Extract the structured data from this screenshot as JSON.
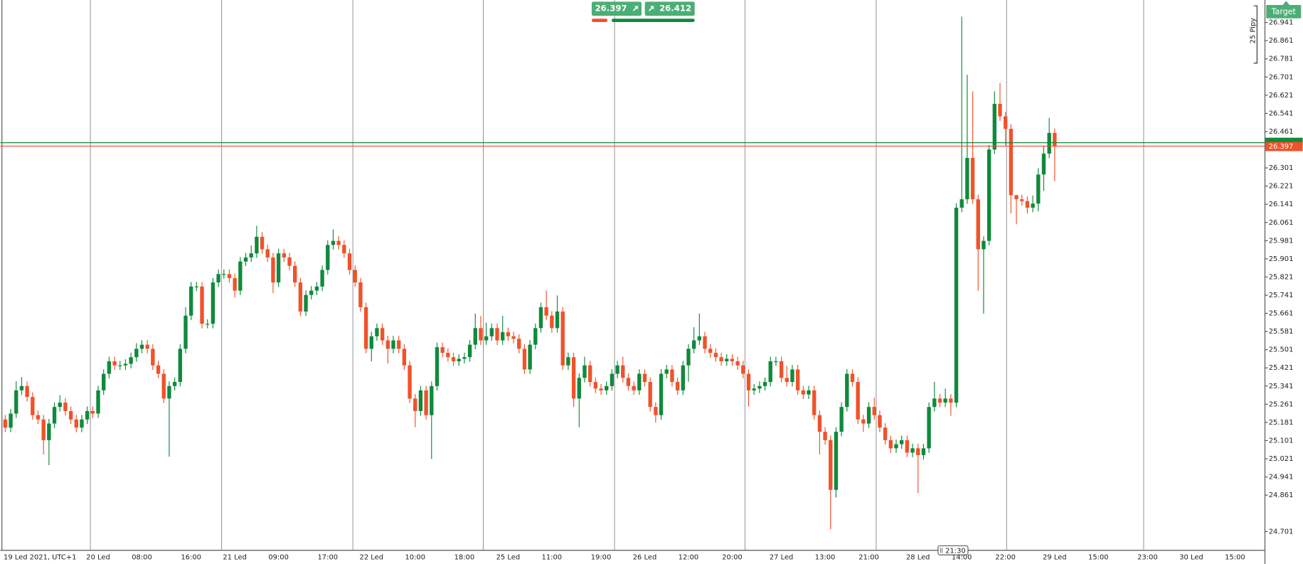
{
  "chart_data": {
    "type": "candlestick",
    "up_color": "#0f8a3c",
    "down_color": "#f0522a",
    "bid": 26.397,
    "ask": 26.412,
    "target_label": "Target",
    "pip_label": "25 Pipy",
    "crosshair_time": "21:30",
    "ylim": [
      24.62,
      27.04
    ],
    "yticks": [
      24.701,
      24.861,
      24.941,
      25.021,
      25.101,
      25.181,
      25.261,
      25.341,
      25.421,
      25.501,
      25.581,
      25.661,
      25.741,
      25.821,
      25.901,
      25.981,
      26.061,
      26.141,
      26.221,
      26.301,
      26.461,
      26.541,
      26.621,
      26.701,
      26.781,
      26.861,
      26.941
    ],
    "categories": [
      "19 Led 2021, UTC+1",
      null,
      null,
      null,
      null,
      null,
      null,
      null,
      null,
      null,
      null,
      null,
      null,
      null,
      null,
      null,
      null,
      "20 Led",
      null,
      null,
      null,
      null,
      null,
      null,
      null,
      "08:00",
      null,
      null,
      null,
      null,
      null,
      null,
      null,
      null,
      "16:00",
      null,
      null,
      null,
      null,
      null,
      null,
      null,
      "21 Led",
      null,
      null,
      null,
      null,
      null,
      null,
      null,
      "09:00",
      null,
      null,
      null,
      null,
      null,
      null,
      null,
      null,
      "17:00",
      null,
      null,
      null,
      null,
      null,
      null,
      null,
      "22 Led",
      null,
      null,
      null,
      null,
      null,
      null,
      null,
      "10:00",
      null,
      null,
      null,
      null,
      null,
      null,
      null,
      null,
      "18:00",
      null,
      null,
      null,
      null,
      null,
      null,
      null,
      "25 Led",
      null,
      null,
      null,
      null,
      null,
      null,
      null,
      "11:00",
      null,
      null,
      null,
      null,
      null,
      null,
      null,
      null,
      "19:00",
      null,
      null,
      null,
      null,
      null,
      null,
      null,
      "26 Led",
      null,
      null,
      null,
      null,
      null,
      null,
      null,
      "12:00",
      null,
      null,
      null,
      null,
      null,
      null,
      null,
      "20:00",
      null,
      null,
      null,
      null,
      null,
      null,
      null,
      null,
      "27 Led",
      null,
      null,
      null,
      null,
      null,
      null,
      null,
      "13:00",
      null,
      null,
      null,
      null,
      null,
      null,
      null,
      "21:00",
      null,
      null,
      null,
      null,
      null,
      null,
      null,
      null,
      "28 Led",
      null,
      null,
      null,
      null,
      null,
      null,
      null,
      "14:00",
      null,
      null,
      null,
      null,
      null,
      null,
      null,
      "22:00",
      null,
      null,
      null,
      null,
      null,
      null,
      null,
      null,
      "29 Led",
      null,
      null,
      null,
      null,
      null,
      null,
      null,
      "15:00",
      null,
      null,
      null,
      null,
      null,
      null,
      null,
      null,
      "23:00",
      null,
      null,
      null,
      null,
      null,
      null,
      null,
      "30 Led",
      null,
      null,
      null,
      null,
      null,
      null,
      null,
      "15:00"
    ],
    "open": [
      25.194,
      25.158,
      25.22,
      25.322,
      25.341,
      25.293,
      25.213,
      25.194,
      25.103,
      25.176,
      25.249,
      25.268,
      25.231,
      25.194,
      25.158,
      25.194,
      25.231,
      25.22,
      25.322,
      25.395,
      25.45,
      25.432,
      25.432,
      25.439,
      25.468,
      25.505,
      25.523,
      25.505,
      25.432,
      25.395,
      25.286,
      25.341,
      25.359,
      25.505,
      25.651,
      25.779,
      25.779,
      25.615,
      25.615,
      25.797,
      25.834,
      25.834,
      25.816,
      25.761,
      25.889,
      25.907,
      25.925,
      25.998,
      25.943,
      25.907,
      25.797,
      25.925,
      25.907,
      25.87,
      25.797,
      25.669,
      25.742,
      25.761,
      25.779,
      25.852,
      25.962,
      25.98,
      25.962,
      25.925,
      25.852,
      25.797,
      25.688,
      25.505,
      25.56,
      25.596,
      25.542,
      25.505,
      25.542,
      25.505,
      25.432,
      25.286,
      25.231,
      25.322,
      25.213,
      25.341,
      25.512,
      25.487,
      25.468,
      25.45,
      25.461,
      25.468,
      25.523,
      25.596,
      25.542,
      25.56,
      25.596,
      25.542,
      25.578,
      25.56,
      25.549,
      25.505,
      25.414,
      25.523,
      25.596,
      25.688,
      25.651,
      25.596,
      25.669,
      25.432,
      25.468,
      25.286,
      25.377,
      25.432,
      25.359,
      25.33,
      25.322,
      25.341,
      25.395,
      25.432,
      25.377,
      25.341,
      25.322,
      25.395,
      25.359,
      25.249,
      25.213,
      25.395,
      25.414,
      25.359,
      25.322,
      25.432,
      25.505,
      25.542,
      25.56,
      25.505,
      25.487,
      25.468,
      25.45,
      25.461,
      25.45,
      25.432,
      25.395,
      25.322,
      25.33,
      25.341,
      25.359,
      25.45,
      25.45,
      25.377,
      25.359,
      25.414,
      25.322,
      25.304,
      25.322,
      25.213,
      25.14,
      25.103,
      24.884,
      25.14,
      25.249,
      25.395,
      25.359,
      25.194,
      25.176,
      25.249,
      25.213,
      25.158,
      25.103,
      25.067,
      25.085,
      25.103,
      25.048,
      25.067,
      25.037,
      25.067,
      25.249,
      25.286,
      25.268,
      25.286,
      25.268,
      26.126,
      26.163,
      26.345,
      26.163,
      25.943,
      25.98,
      26.382,
      26.583,
      26.528,
      26.473,
      26.181,
      26.163,
      26.155,
      26.126,
      26.144,
      26.272,
      26.364,
      26.455,
      null,
      null,
      null,
      null,
      null,
      null,
      null,
      null,
      null,
      null,
      null,
      null,
      null,
      null,
      null,
      null,
      null,
      null,
      null,
      null,
      null,
      null,
      null,
      null,
      null,
      null,
      null,
      null,
      null,
      null,
      null,
      null,
      null
    ],
    "high": [
      25.214,
      25.24,
      25.362,
      25.38,
      25.361,
      25.313,
      25.233,
      25.214,
      25.196,
      25.269,
      25.3,
      25.288,
      25.251,
      25.214,
      25.214,
      25.251,
      25.251,
      25.342,
      25.415,
      25.47,
      25.47,
      25.452,
      25.459,
      25.488,
      25.53,
      25.543,
      25.543,
      25.525,
      25.452,
      25.415,
      25.361,
      25.379,
      25.525,
      25.688,
      25.799,
      25.799,
      25.799,
      25.635,
      25.817,
      25.854,
      25.854,
      25.854,
      25.836,
      25.909,
      25.927,
      25.96,
      26.046,
      26.018,
      25.963,
      25.927,
      25.945,
      25.945,
      25.927,
      25.89,
      25.817,
      25.762,
      25.781,
      25.799,
      25.872,
      25.982,
      26.03,
      26.0,
      25.982,
      25.945,
      25.872,
      25.817,
      25.708,
      25.58,
      25.616,
      25.616,
      25.562,
      25.562,
      25.562,
      25.525,
      25.452,
      25.306,
      25.342,
      25.342,
      25.361,
      25.532,
      25.532,
      25.507,
      25.488,
      25.481,
      25.488,
      25.543,
      25.66,
      25.65,
      25.62,
      25.616,
      25.616,
      25.65,
      25.598,
      25.58,
      25.569,
      25.525,
      25.543,
      25.616,
      25.708,
      25.761,
      25.671,
      25.74,
      25.689,
      25.488,
      25.488,
      25.397,
      25.47,
      25.452,
      25.379,
      25.35,
      25.361,
      25.415,
      25.452,
      25.47,
      25.397,
      25.361,
      25.415,
      25.415,
      25.379,
      25.269,
      25.415,
      25.434,
      25.434,
      25.379,
      25.452,
      25.525,
      25.6,
      25.66,
      25.58,
      25.525,
      25.507,
      25.488,
      25.481,
      25.481,
      25.47,
      25.452,
      25.415,
      25.35,
      25.361,
      25.379,
      25.47,
      25.47,
      25.47,
      25.43,
      25.434,
      25.434,
      25.342,
      25.342,
      25.342,
      25.233,
      25.16,
      25.123,
      25.16,
      25.269,
      25.415,
      25.415,
      25.379,
      25.214,
      25.269,
      25.29,
      25.233,
      25.178,
      25.123,
      25.105,
      25.123,
      25.123,
      25.087,
      25.087,
      25.087,
      25.269,
      25.36,
      25.306,
      25.33,
      25.306,
      26.146,
      26.967,
      26.711,
      26.638,
      26.183,
      26.0,
      26.402,
      26.638,
      26.674,
      26.548,
      26.493,
      26.183,
      26.183,
      26.175,
      26.18,
      26.3,
      26.4,
      26.521,
      26.475,
      null,
      null,
      null,
      null,
      null,
      null,
      null,
      null,
      null,
      null,
      null,
      null,
      null,
      null,
      null,
      null,
      null,
      null,
      null,
      null,
      null,
      null,
      null,
      null,
      null,
      null,
      null,
      null,
      null,
      null,
      null,
      null,
      null
    ],
    "low": [
      25.138,
      25.138,
      25.2,
      25.302,
      25.273,
      25.193,
      25.174,
      25.04,
      24.993,
      25.156,
      25.229,
      25.211,
      25.174,
      25.138,
      25.138,
      25.174,
      25.2,
      25.2,
      25.302,
      25.375,
      25.412,
      25.412,
      25.412,
      25.419,
      25.448,
      25.485,
      25.485,
      25.412,
      25.375,
      25.266,
      25.03,
      25.321,
      25.339,
      25.485,
      25.631,
      25.759,
      25.595,
      25.595,
      25.595,
      25.777,
      25.814,
      25.796,
      25.73,
      25.741,
      25.869,
      25.887,
      25.905,
      25.923,
      25.887,
      25.75,
      25.777,
      25.887,
      25.85,
      25.777,
      25.649,
      25.649,
      25.722,
      25.741,
      25.759,
      25.832,
      25.942,
      25.942,
      25.905,
      25.832,
      25.777,
      25.668,
      25.485,
      25.45,
      25.54,
      25.522,
      25.44,
      25.485,
      25.485,
      25.412,
      25.266,
      25.16,
      25.211,
      25.193,
      25.02,
      25.321,
      25.467,
      25.448,
      25.43,
      25.43,
      25.441,
      25.448,
      25.503,
      25.522,
      25.522,
      25.54,
      25.522,
      25.522,
      25.54,
      25.529,
      25.485,
      25.394,
      25.394,
      25.503,
      25.576,
      25.631,
      25.576,
      25.576,
      25.412,
      25.412,
      25.25,
      25.16,
      25.357,
      25.339,
      25.31,
      25.302,
      25.302,
      25.321,
      25.375,
      25.357,
      25.321,
      25.302,
      25.302,
      25.339,
      25.229,
      25.18,
      25.193,
      25.375,
      25.339,
      25.302,
      25.302,
      25.36,
      25.485,
      25.522,
      25.485,
      25.467,
      25.448,
      25.43,
      25.43,
      25.43,
      25.412,
      25.375,
      25.25,
      25.302,
      25.31,
      25.321,
      25.339,
      25.43,
      25.357,
      25.339,
      25.339,
      25.302,
      25.284,
      25.284,
      25.193,
      25.04,
      25.083,
      24.711,
      24.85,
      25.12,
      25.229,
      25.339,
      25.174,
      25.14,
      25.156,
      25.193,
      25.138,
      25.083,
      25.047,
      25.047,
      25.065,
      25.028,
      25.028,
      24.87,
      25.017,
      25.047,
      25.229,
      25.248,
      25.248,
      25.21,
      25.248,
      26.106,
      26.143,
      26.143,
      25.761,
      25.659,
      25.96,
      26.362,
      26.508,
      26.4,
      26.1,
      26.053,
      26.135,
      26.1,
      26.106,
      26.11,
      26.2,
      26.344,
      26.243,
      null,
      null,
      null,
      null,
      null,
      null,
      null,
      null,
      null,
      null,
      null,
      null,
      null,
      null,
      null,
      null,
      null,
      null,
      null,
      null,
      null,
      null,
      null,
      null,
      null,
      null,
      null,
      null,
      null,
      null,
      null,
      null,
      null
    ],
    "close": [
      25.158,
      25.22,
      25.322,
      25.341,
      25.293,
      25.213,
      25.194,
      25.103,
      25.176,
      25.249,
      25.268,
      25.231,
      25.194,
      25.158,
      25.194,
      25.231,
      25.22,
      25.322,
      25.395,
      25.45,
      25.432,
      25.432,
      25.439,
      25.468,
      25.505,
      25.523,
      25.505,
      25.432,
      25.395,
      25.286,
      25.341,
      25.359,
      25.505,
      25.651,
      25.779,
      25.779,
      25.615,
      25.615,
      25.797,
      25.834,
      25.834,
      25.816,
      25.761,
      25.889,
      25.907,
      25.925,
      25.998,
      25.943,
      25.907,
      25.797,
      25.925,
      25.907,
      25.87,
      25.797,
      25.669,
      25.742,
      25.761,
      25.779,
      25.852,
      25.962,
      25.98,
      25.962,
      25.925,
      25.852,
      25.797,
      25.688,
      25.505,
      25.56,
      25.596,
      25.542,
      25.505,
      25.542,
      25.505,
      25.432,
      25.286,
      25.231,
      25.322,
      25.213,
      25.341,
      25.512,
      25.487,
      25.468,
      25.45,
      25.461,
      25.468,
      25.523,
      25.596,
      25.542,
      25.56,
      25.596,
      25.542,
      25.578,
      25.56,
      25.549,
      25.505,
      25.414,
      25.523,
      25.596,
      25.688,
      25.651,
      25.596,
      25.669,
      25.432,
      25.468,
      25.286,
      25.377,
      25.432,
      25.359,
      25.33,
      25.322,
      25.341,
      25.395,
      25.432,
      25.377,
      25.341,
      25.322,
      25.395,
      25.359,
      25.249,
      25.213,
      25.395,
      25.414,
      25.359,
      25.322,
      25.432,
      25.505,
      25.542,
      25.56,
      25.505,
      25.487,
      25.468,
      25.45,
      25.461,
      25.45,
      25.432,
      25.395,
      25.322,
      25.33,
      25.341,
      25.359,
      25.45,
      25.45,
      25.377,
      25.359,
      25.414,
      25.322,
      25.304,
      25.322,
      25.213,
      25.14,
      25.103,
      24.884,
      25.14,
      25.249,
      25.395,
      25.359,
      25.194,
      25.176,
      25.249,
      25.213,
      25.158,
      25.103,
      25.067,
      25.085,
      25.103,
      25.048,
      25.067,
      25.037,
      25.067,
      25.249,
      25.286,
      25.268,
      25.286,
      25.268,
      26.126,
      26.163,
      26.345,
      26.163,
      25.943,
      25.98,
      26.382,
      26.583,
      26.528,
      26.473,
      26.181,
      26.163,
      26.155,
      26.126,
      26.144,
      26.272,
      26.364,
      26.455,
      26.397,
      null,
      null,
      null,
      null,
      null,
      null,
      null,
      null,
      null,
      null,
      null,
      null,
      null,
      null,
      null,
      null,
      null,
      null,
      null,
      null,
      null,
      null,
      null,
      null,
      null,
      null,
      null,
      null,
      null,
      null,
      null,
      null,
      null
    ]
  }
}
